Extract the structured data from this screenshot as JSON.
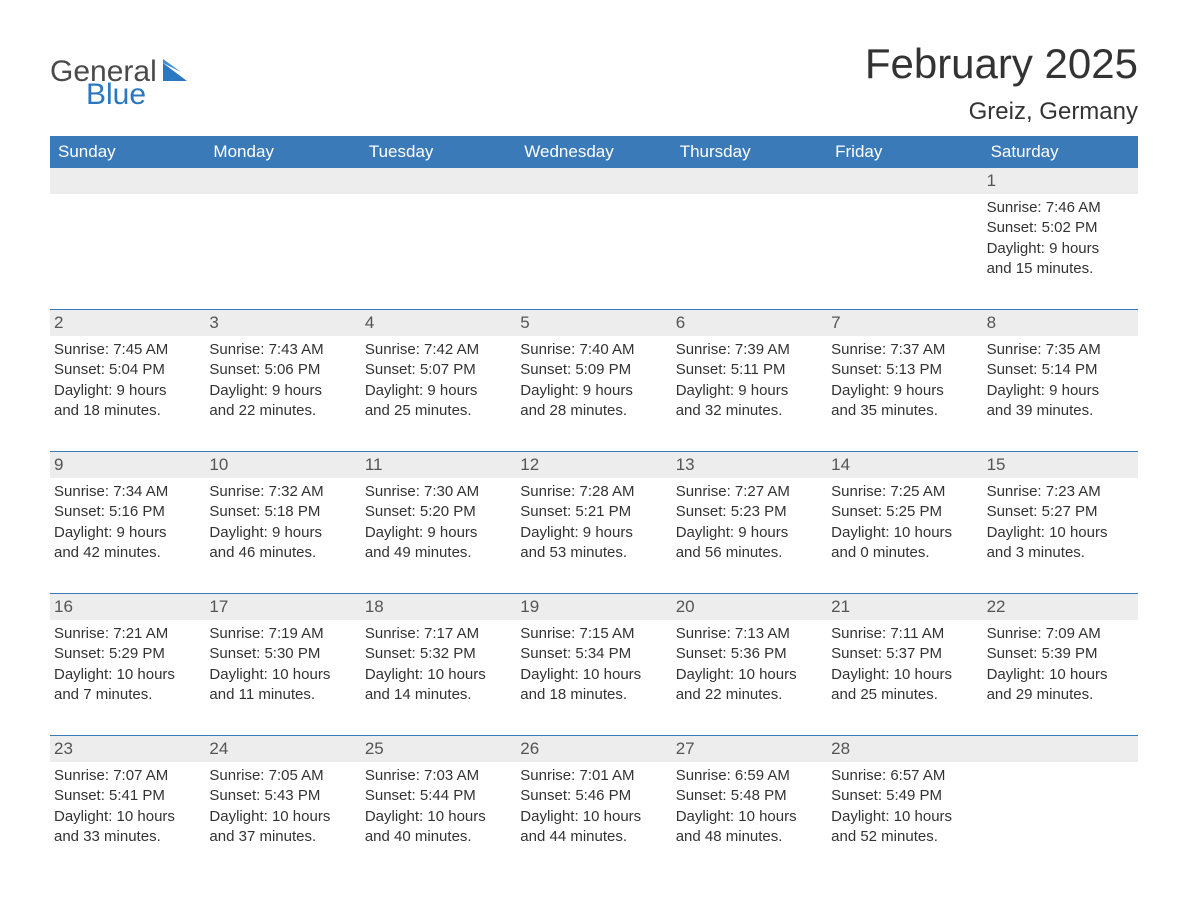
{
  "brand": {
    "part1": "General",
    "part2": "Blue",
    "text_color": "#4a4a4a",
    "accent_color": "#2b78c2"
  },
  "title": "February 2025",
  "location": "Greiz, Germany",
  "colors": {
    "header_bg": "#3a7ab8",
    "header_text": "#ffffff",
    "row_separator": "#3a7ab8",
    "daynum_bg": "#ededed",
    "body_text": "#333333",
    "page_bg": "#ffffff"
  },
  "dow": [
    "Sunday",
    "Monday",
    "Tuesday",
    "Wednesday",
    "Thursday",
    "Friday",
    "Saturday"
  ],
  "weeks": [
    [
      null,
      null,
      null,
      null,
      null,
      null,
      {
        "n": "1",
        "sunrise": "7:46 AM",
        "sunset": "5:02 PM",
        "dl1": "Daylight: 9 hours",
        "dl2": "and 15 minutes."
      }
    ],
    [
      {
        "n": "2",
        "sunrise": "7:45 AM",
        "sunset": "5:04 PM",
        "dl1": "Daylight: 9 hours",
        "dl2": "and 18 minutes."
      },
      {
        "n": "3",
        "sunrise": "7:43 AM",
        "sunset": "5:06 PM",
        "dl1": "Daylight: 9 hours",
        "dl2": "and 22 minutes."
      },
      {
        "n": "4",
        "sunrise": "7:42 AM",
        "sunset": "5:07 PM",
        "dl1": "Daylight: 9 hours",
        "dl2": "and 25 minutes."
      },
      {
        "n": "5",
        "sunrise": "7:40 AM",
        "sunset": "5:09 PM",
        "dl1": "Daylight: 9 hours",
        "dl2": "and 28 minutes."
      },
      {
        "n": "6",
        "sunrise": "7:39 AM",
        "sunset": "5:11 PM",
        "dl1": "Daylight: 9 hours",
        "dl2": "and 32 minutes."
      },
      {
        "n": "7",
        "sunrise": "7:37 AM",
        "sunset": "5:13 PM",
        "dl1": "Daylight: 9 hours",
        "dl2": "and 35 minutes."
      },
      {
        "n": "8",
        "sunrise": "7:35 AM",
        "sunset": "5:14 PM",
        "dl1": "Daylight: 9 hours",
        "dl2": "and 39 minutes."
      }
    ],
    [
      {
        "n": "9",
        "sunrise": "7:34 AM",
        "sunset": "5:16 PM",
        "dl1": "Daylight: 9 hours",
        "dl2": "and 42 minutes."
      },
      {
        "n": "10",
        "sunrise": "7:32 AM",
        "sunset": "5:18 PM",
        "dl1": "Daylight: 9 hours",
        "dl2": "and 46 minutes."
      },
      {
        "n": "11",
        "sunrise": "7:30 AM",
        "sunset": "5:20 PM",
        "dl1": "Daylight: 9 hours",
        "dl2": "and 49 minutes."
      },
      {
        "n": "12",
        "sunrise": "7:28 AM",
        "sunset": "5:21 PM",
        "dl1": "Daylight: 9 hours",
        "dl2": "and 53 minutes."
      },
      {
        "n": "13",
        "sunrise": "7:27 AM",
        "sunset": "5:23 PM",
        "dl1": "Daylight: 9 hours",
        "dl2": "and 56 minutes."
      },
      {
        "n": "14",
        "sunrise": "7:25 AM",
        "sunset": "5:25 PM",
        "dl1": "Daylight: 10 hours",
        "dl2": "and 0 minutes."
      },
      {
        "n": "15",
        "sunrise": "7:23 AM",
        "sunset": "5:27 PM",
        "dl1": "Daylight: 10 hours",
        "dl2": "and 3 minutes."
      }
    ],
    [
      {
        "n": "16",
        "sunrise": "7:21 AM",
        "sunset": "5:29 PM",
        "dl1": "Daylight: 10 hours",
        "dl2": "and 7 minutes."
      },
      {
        "n": "17",
        "sunrise": "7:19 AM",
        "sunset": "5:30 PM",
        "dl1": "Daylight: 10 hours",
        "dl2": "and 11 minutes."
      },
      {
        "n": "18",
        "sunrise": "7:17 AM",
        "sunset": "5:32 PM",
        "dl1": "Daylight: 10 hours",
        "dl2": "and 14 minutes."
      },
      {
        "n": "19",
        "sunrise": "7:15 AM",
        "sunset": "5:34 PM",
        "dl1": "Daylight: 10 hours",
        "dl2": "and 18 minutes."
      },
      {
        "n": "20",
        "sunrise": "7:13 AM",
        "sunset": "5:36 PM",
        "dl1": "Daylight: 10 hours",
        "dl2": "and 22 minutes."
      },
      {
        "n": "21",
        "sunrise": "7:11 AM",
        "sunset": "5:37 PM",
        "dl1": "Daylight: 10 hours",
        "dl2": "and 25 minutes."
      },
      {
        "n": "22",
        "sunrise": "7:09 AM",
        "sunset": "5:39 PM",
        "dl1": "Daylight: 10 hours",
        "dl2": "and 29 minutes."
      }
    ],
    [
      {
        "n": "23",
        "sunrise": "7:07 AM",
        "sunset": "5:41 PM",
        "dl1": "Daylight: 10 hours",
        "dl2": "and 33 minutes."
      },
      {
        "n": "24",
        "sunrise": "7:05 AM",
        "sunset": "5:43 PM",
        "dl1": "Daylight: 10 hours",
        "dl2": "and 37 minutes."
      },
      {
        "n": "25",
        "sunrise": "7:03 AM",
        "sunset": "5:44 PM",
        "dl1": "Daylight: 10 hours",
        "dl2": "and 40 minutes."
      },
      {
        "n": "26",
        "sunrise": "7:01 AM",
        "sunset": "5:46 PM",
        "dl1": "Daylight: 10 hours",
        "dl2": "and 44 minutes."
      },
      {
        "n": "27",
        "sunrise": "6:59 AM",
        "sunset": "5:48 PM",
        "dl1": "Daylight: 10 hours",
        "dl2": "and 48 minutes."
      },
      {
        "n": "28",
        "sunrise": "6:57 AM",
        "sunset": "5:49 PM",
        "dl1": "Daylight: 10 hours",
        "dl2": "and 52 minutes."
      },
      null
    ]
  ],
  "labels": {
    "sunrise_prefix": "Sunrise: ",
    "sunset_prefix": "Sunset: "
  }
}
